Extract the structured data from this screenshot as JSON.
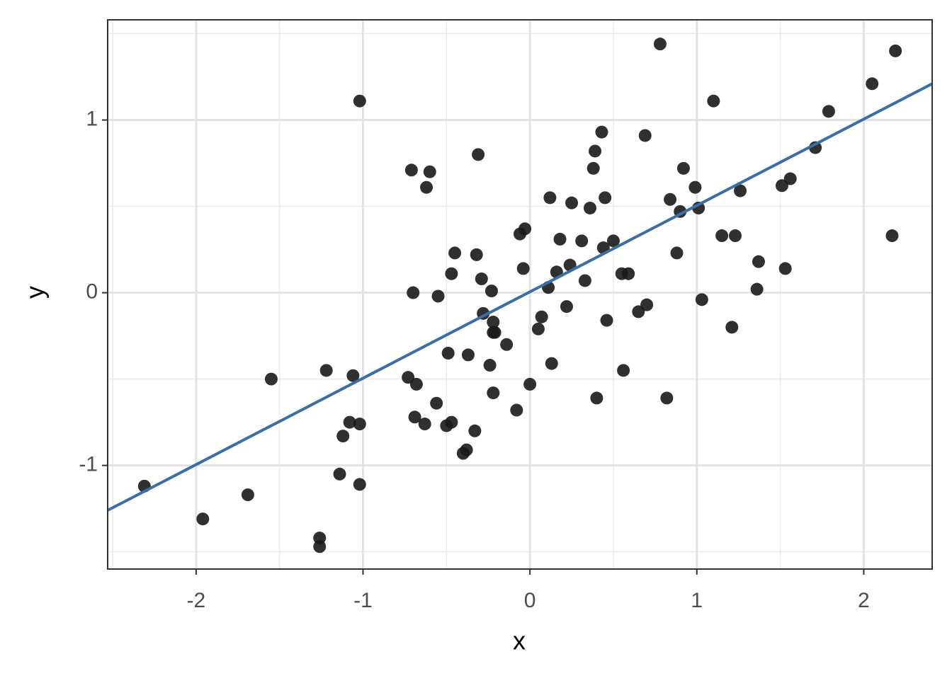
{
  "chart_data": {
    "type": "scatter",
    "x_label": "x",
    "y_label": "y",
    "xlim": [
      -2.53,
      2.41
    ],
    "ylim": [
      -1.6,
      1.58
    ],
    "xticks": [
      -2,
      -1,
      0,
      1,
      2
    ],
    "yticks": [
      -1,
      0,
      1
    ],
    "xminor": [
      -2.5,
      -1.5,
      -0.5,
      0.5,
      1.5
    ],
    "yminor": [
      -1.5,
      -0.5,
      0.5,
      1.5
    ],
    "grid": true,
    "color": "#1a1a1a",
    "x": [
      -2.31,
      -1.96,
      -1.69,
      -1.55,
      -1.26,
      -1.26,
      -1.22,
      -1.14,
      -1.12,
      -1.08,
      -1.06,
      -1.02,
      -1.02,
      -1.02,
      -0.73,
      -0.71,
      -0.7,
      -0.68,
      -0.69,
      -0.63,
      -0.62,
      -0.6,
      -0.56,
      -0.55,
      -0.5,
      -0.49,
      -0.47,
      -0.47,
      -0.45,
      -0.4,
      -0.38,
      -0.37,
      -0.33,
      -0.32,
      -0.31,
      -0.29,
      -0.28,
      -0.24,
      -0.23,
      -0.22,
      -0.22,
      -0.21,
      -0.22,
      -0.14,
      -0.08,
      -0.06,
      -0.04,
      -0.03,
      0.0,
      0.05,
      0.07,
      0.11,
      0.12,
      0.13,
      0.16,
      0.18,
      0.22,
      0.24,
      0.25,
      0.31,
      0.33,
      0.36,
      0.38,
      0.39,
      0.4,
      0.43,
      0.44,
      0.45,
      0.46,
      0.5,
      0.55,
      0.56,
      0.59,
      0.65,
      0.69,
      0.7,
      0.78,
      0.82,
      0.84,
      0.88,
      0.9,
      0.92,
      0.99,
      1.01,
      1.03,
      1.1,
      1.15,
      1.21,
      1.23,
      1.26,
      1.36,
      1.37,
      1.51,
      1.53,
      1.56,
      1.71,
      1.79,
      2.05,
      2.17,
      2.19
    ],
    "values": [
      -1.12,
      -1.31,
      -1.17,
      -0.5,
      -1.42,
      -1.47,
      -0.45,
      -1.05,
      -0.83,
      -0.75,
      -0.48,
      -0.76,
      -1.11,
      1.11,
      -0.49,
      0.71,
      0.0,
      -0.53,
      -0.72,
      -0.76,
      0.61,
      0.7,
      -0.64,
      -0.02,
      -0.77,
      -0.35,
      -0.75,
      0.11,
      0.23,
      -0.93,
      -0.91,
      -0.36,
      -0.8,
      0.22,
      0.8,
      0.08,
      -0.12,
      -0.42,
      0.01,
      -0.17,
      -0.23,
      -0.23,
      -0.58,
      -0.3,
      -0.68,
      0.34,
      0.14,
      0.37,
      -0.53,
      -0.21,
      -0.14,
      0.03,
      0.55,
      -0.41,
      0.12,
      0.31,
      -0.08,
      0.16,
      0.52,
      0.3,
      0.07,
      0.49,
      0.72,
      0.82,
      -0.61,
      0.93,
      0.26,
      0.55,
      -0.16,
      0.3,
      0.11,
      -0.45,
      0.11,
      -0.11,
      0.91,
      -0.07,
      1.44,
      -0.61,
      0.54,
      0.23,
      0.47,
      0.72,
      0.61,
      0.49,
      -0.04,
      1.11,
      0.33,
      -0.2,
      0.33,
      0.59,
      0.02,
      0.18,
      0.62,
      0.14,
      0.66,
      0.84,
      1.05,
      1.21,
      0.33,
      1.4
    ],
    "fit": {
      "color": "#3a6ea5",
      "x": [
        -2.53,
        2.41
      ],
      "y": [
        -1.26,
        1.21
      ]
    }
  }
}
